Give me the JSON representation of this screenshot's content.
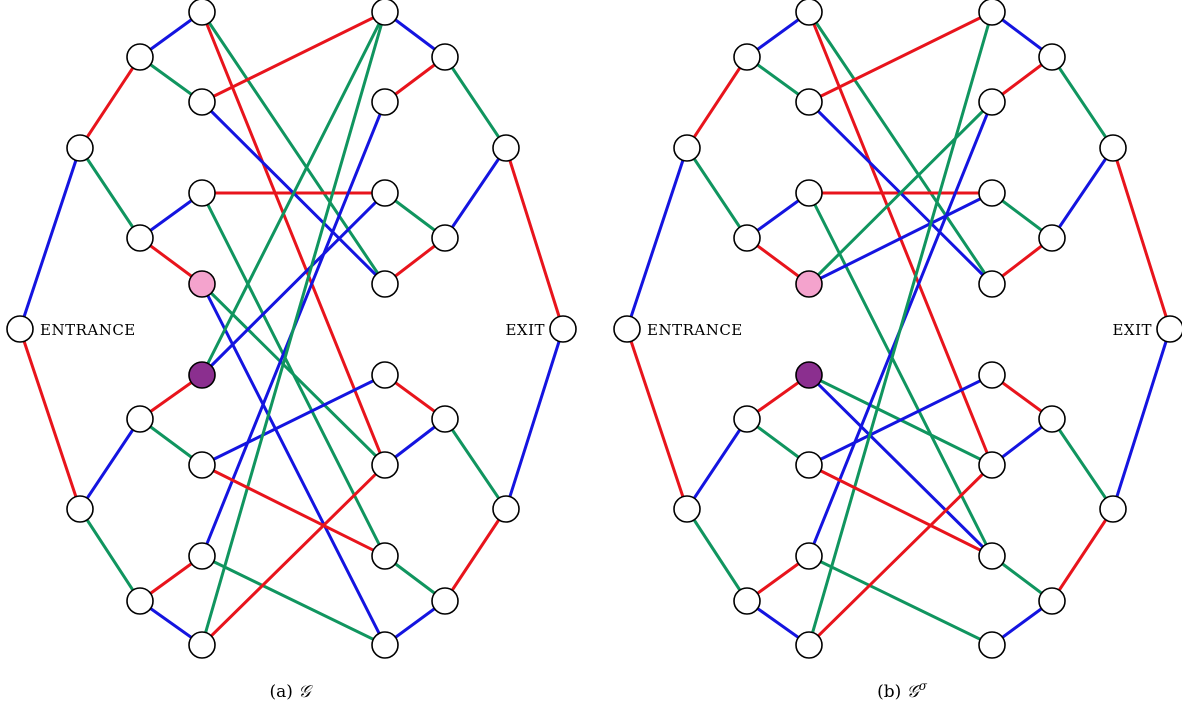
{
  "colors": {
    "r": "#e8141c",
    "g": "#10955f",
    "b": "#1414e0",
    "pink": "#f4a3cd",
    "purple": "#8b2f8f"
  },
  "panels": [
    {
      "id": "a",
      "entrance_label": "ENTRANCE",
      "exit_label": "EXIT",
      "caption": "(a) G",
      "caption_math": "𝒢",
      "caption_prefix": "(a)",
      "caption_sup": "",
      "left_cross": [
        [
          "g",
          "r"
        ],
        [
          "r",
          "b"
        ],
        [
          "g",
          "b"
        ],
        [
          "g",
          "b"
        ]
      ],
      "right_cross": [
        [
          "r",
          "g"
        ],
        [
          "b",
          "g"
        ],
        [
          "g",
          "r"
        ],
        [
          "b",
          "r"
        ]
      ],
      "middle": [
        [
          2,
          4,
          "r"
        ],
        [
          3,
          11,
          "g"
        ],
        [
          3,
          8,
          "r"
        ],
        [
          1,
          2,
          "b"
        ],
        [
          5,
          6,
          "r"
        ],
        [
          9,
          3,
          "b"
        ],
        [
          6,
          12,
          "g"
        ],
        [
          7,
          2,
          "g"
        ],
        [
          7,
          10,
          "b"
        ],
        [
          8,
          12,
          "g"
        ],
        [
          9,
          5,
          "b"
        ],
        [
          10,
          6,
          "g"
        ],
        [
          11,
          1,
          "g"
        ],
        [
          12,
          4,
          "b"
        ],
        [
          4,
          9,
          "b"
        ],
        [
          5,
          9,
          "g"
        ]
      ],
      "highlight": {
        "pink": 6,
        "purple": 7
      }
    },
    {
      "id": "b",
      "entrance_label": "ENTRANCE",
      "exit_label": "EXIT",
      "caption_prefix": "(b)",
      "caption_math": "𝒢",
      "caption_sup": "σ",
      "left_cross": [
        [
          "g",
          "r"
        ],
        [
          "r",
          "b"
        ],
        [
          "g",
          "b"
        ],
        [
          "g",
          "b"
        ]
      ],
      "right_cross": [
        [
          "r",
          "g"
        ],
        [
          "b",
          "g"
        ],
        [
          "g",
          "r"
        ],
        [
          "b",
          "r"
        ]
      ],
      "middle": [
        [
          2,
          4,
          "r"
        ],
        [
          3,
          11,
          "g"
        ],
        [
          3,
          8,
          "r"
        ],
        [
          1,
          2,
          "b"
        ],
        [
          5,
          6,
          "r"
        ],
        [
          9,
          3,
          "b"
        ],
        [
          6,
          12,
          "g"
        ],
        [
          7,
          2,
          "g"
        ],
        [
          7,
          10,
          "b"
        ],
        [
          8,
          12,
          "g"
        ],
        [
          9,
          5,
          "b"
        ],
        [
          10,
          6,
          "g"
        ],
        [
          11,
          1,
          "g"
        ],
        [
          12,
          4,
          "b"
        ],
        [
          4,
          9,
          "b"
        ],
        [
          5,
          9,
          "g"
        ]
      ],
      "highlight": {
        "pink": 6,
        "purple": 7
      }
    }
  ]
}
